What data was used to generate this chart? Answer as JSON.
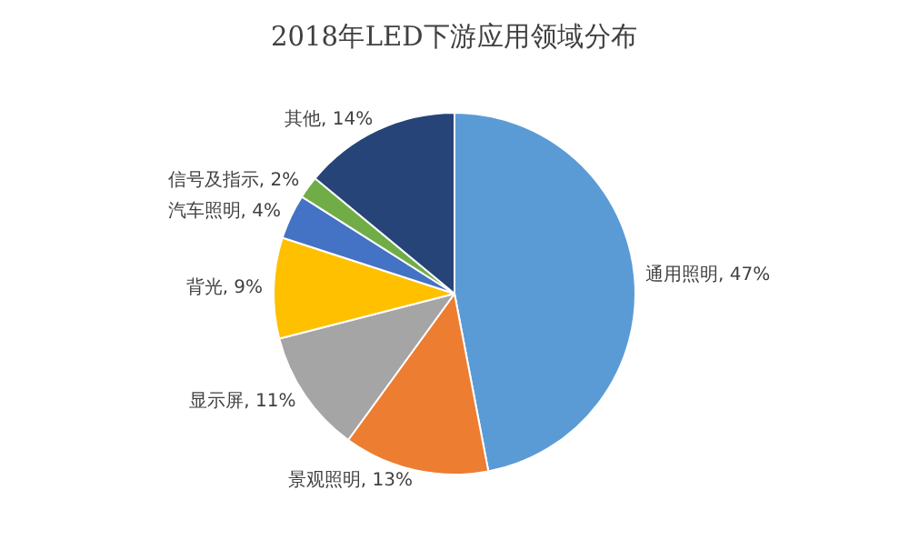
{
  "chart_data": {
    "type": "pie",
    "title": "2018年LED下游应用领域分布",
    "categories": [
      "通用照明",
      "景观照明",
      "显示屏",
      "背光",
      "汽车照明",
      "信号及指示",
      "其他"
    ],
    "values": [
      47,
      13,
      11,
      9,
      4,
      2,
      14
    ],
    "value_labels": [
      "47%",
      "13%",
      "11%",
      "9%",
      "4%",
      "2%",
      "14%"
    ],
    "colors": [
      "#5b9bd5",
      "#ed7d31",
      "#a5a5a5",
      "#ffc000",
      "#4472c4",
      "#70ad47",
      "#264478"
    ],
    "legend": false
  }
}
